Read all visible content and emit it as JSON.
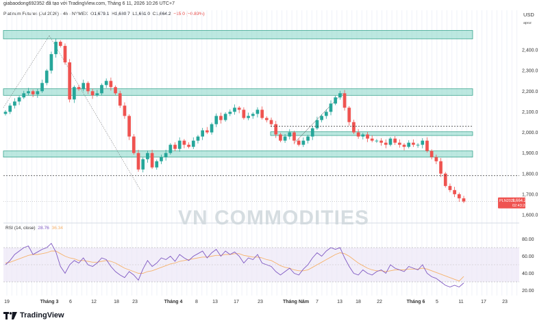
{
  "header": {
    "credit": "giabaodong692352 đã tạo với TradingView.com, Tháng 6 11, 2026 10:26 UTC+7",
    "symbol": "Platinum Futures (Jul 2026) · 4h · NYMEX",
    "o_label": "O",
    "o": "1,679.1",
    "h_label": "H",
    "h": "1,680.7",
    "l_label": "L",
    "l": "1,661.0",
    "c_label": "C",
    "c": "1,664.2",
    "change": "−15.0 (−0.89%)",
    "currency": "USD",
    "unit": "apoz"
  },
  "watermark": "VN COMMODITIES",
  "price_tag": {
    "symbol": "PLN2026",
    "price": "1,664.2",
    "countdown": "02:43:28"
  },
  "rsi_legend": {
    "name": "RSI (14, close)",
    "rsi": "28.76",
    "ma": "36.34"
  },
  "footer": {
    "brand": "TradingView"
  },
  "colors": {
    "up": "#26a69a",
    "down": "#ef5350",
    "zone": "#8fd8cb",
    "rsi": "#7e57c2",
    "rsi_ma": "#f6b26b",
    "band": "#ede7f6",
    "price_tag": "#ef5350"
  },
  "chart_data": [
    {
      "type": "candlestick",
      "title": "Platinum Futures (Jul 2026) · 4h · NYMEX",
      "x_ticks": [
        "19",
        "Tháng 3",
        "6",
        "12",
        "18",
        "23",
        "Tháng 4",
        "8",
        "13",
        "17",
        "23",
        "Tháng Năm",
        "7",
        "13",
        "18",
        "22",
        "Tháng 6",
        "5",
        "11",
        "17",
        "23"
      ],
      "y_ticks": [
        "2,400.0",
        "2,300.0",
        "2,200.0",
        "2,100.0",
        "2,000.0",
        "1,900.0",
        "1,800.0",
        "1,700.0",
        "1,600.0"
      ],
      "ylim": [
        1580,
        2510
      ],
      "series": [
        {
          "name": "Platinum Futures (Jul 2026)",
          "close": [
            2100,
            2130,
            2150,
            2170,
            2190,
            2200,
            2185,
            2200,
            2240,
            2300,
            2380,
            2440,
            2420,
            2340,
            2160,
            2220,
            2210,
            2240,
            2200,
            2180,
            2190,
            2230,
            2250,
            2220,
            2190,
            2130,
            2080,
            1980,
            1900,
            1820,
            1870,
            1900,
            1830,
            1860,
            1880,
            1900,
            1940,
            1920,
            1960,
            1940,
            1930,
            1960,
            1980,
            2010,
            2000,
            2040,
            2080,
            2060,
            2090,
            2100,
            2120,
            2110,
            2070,
            2080,
            2090,
            2110,
            2070,
            2060,
            2040,
            1990,
            1960,
            1980,
            2000,
            1960,
            1940,
            1960,
            1980,
            2020,
            2060,
            2080,
            2100,
            2140,
            2170,
            2190,
            2120,
            2050,
            2000,
            1980,
            1990,
            1970,
            1960,
            1960,
            1950,
            1940,
            1970,
            1950,
            1940,
            1930,
            1950,
            1940,
            1940,
            1960,
            1910,
            1880,
            1860,
            1800,
            1740,
            1720,
            1700,
            1680,
            1664.2
          ]
        }
      ],
      "zones": [
        [
          2454,
          2495
        ],
        [
          2180,
          2212
        ],
        [
          1985,
          2003
        ],
        [
          1880,
          1910
        ]
      ],
      "dashed_levels": [
        2030,
        1790,
        1664.2
      ]
    },
    {
      "type": "line",
      "title": "RSI (14, close)",
      "y_ticks": [
        "80.00",
        "60.00",
        "40.00",
        "20.00"
      ],
      "ylim": [
        14,
        86
      ],
      "band": [
        30,
        70
      ],
      "series": [
        {
          "name": "RSI",
          "values": [
            50,
            55,
            62,
            66,
            70,
            72,
            62,
            65,
            68,
            70,
            75,
            65,
            48,
            40,
            50,
            55,
            52,
            58,
            50,
            48,
            52,
            58,
            56,
            48,
            42,
            38,
            35,
            42,
            38,
            32,
            45,
            55,
            48,
            52,
            58,
            56,
            60,
            54,
            62,
            58,
            55,
            60,
            63,
            66,
            58,
            64,
            68,
            60,
            66,
            62,
            65,
            60,
            52,
            58,
            56,
            62,
            52,
            50,
            48,
            42,
            38,
            42,
            46,
            40,
            38,
            45,
            50,
            58,
            64,
            60,
            66,
            70,
            68,
            70,
            58,
            48,
            40,
            38,
            44,
            40,
            38,
            42,
            44,
            40,
            50,
            46,
            44,
            42,
            48,
            46,
            44,
            50,
            40,
            36,
            34,
            30,
            26,
            24,
            26,
            24,
            28.76
          ]
        },
        {
          "name": "MA",
          "values": [
            52,
            53,
            55,
            57,
            59,
            61,
            62,
            62,
            63,
            64,
            66,
            66,
            63,
            60,
            58,
            57,
            55,
            55,
            54,
            53,
            53,
            54,
            55,
            54,
            52,
            49,
            46,
            44,
            42,
            40,
            40,
            42,
            43,
            45,
            47,
            49,
            51,
            52,
            54,
            55,
            56,
            57,
            58,
            59,
            59,
            60,
            61,
            61,
            62,
            62,
            63,
            63,
            61,
            60,
            59,
            59,
            58,
            56,
            55,
            52,
            49,
            47,
            46,
            44,
            43,
            43,
            44,
            47,
            50,
            53,
            56,
            59,
            62,
            64,
            63,
            60,
            56,
            52,
            49,
            46,
            44,
            43,
            43,
            42,
            43,
            44,
            44,
            44,
            45,
            45,
            45,
            46,
            45,
            43,
            41,
            39,
            37,
            35,
            33,
            31,
            36.34
          ]
        }
      ]
    }
  ]
}
